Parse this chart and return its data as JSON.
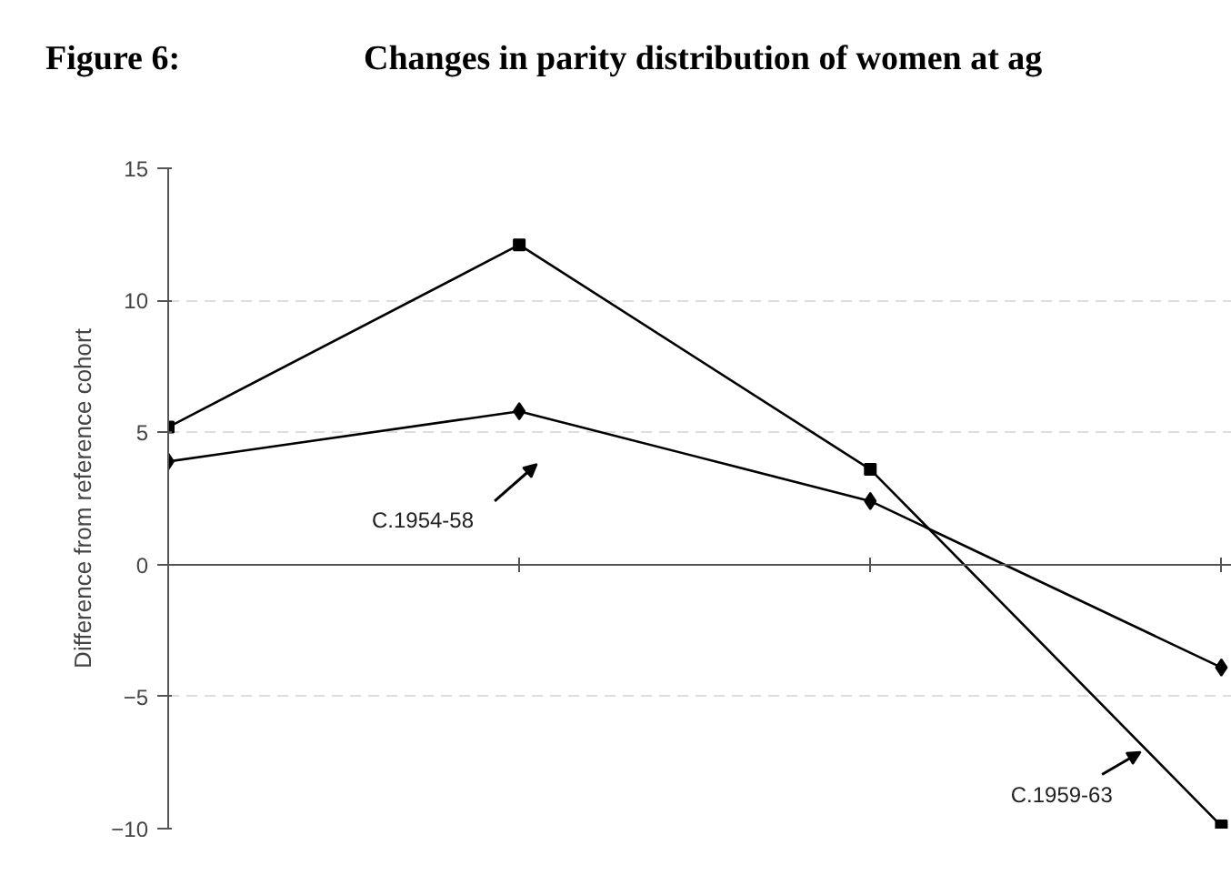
{
  "chart_data": {
    "type": "line",
    "title": "Figure 6:",
    "subtitle": "Changes in parity distribution of women at ag",
    "ylabel": "Difference from reference cohort",
    "categories": [
      null,
      null,
      null,
      null
    ],
    "series": [
      {
        "color": "#000000",
        "marker": "square",
        "values": [
          5.2,
          12.1,
          3.6,
          -9.9
        ]
      },
      {
        "color": "#000000",
        "marker": "diamond",
        "values": [
          3.9,
          5.8,
          2.4,
          -3.9
        ]
      }
    ],
    "annotations": [
      "C.1954-58",
      "C.1959-63"
    ],
    "ylim": [
      -10,
      15
    ],
    "yticks": [
      -10,
      -5,
      0,
      5,
      10,
      15
    ],
    "grid": "y",
    "tick_labels": "y",
    "line_style": "solid"
  }
}
